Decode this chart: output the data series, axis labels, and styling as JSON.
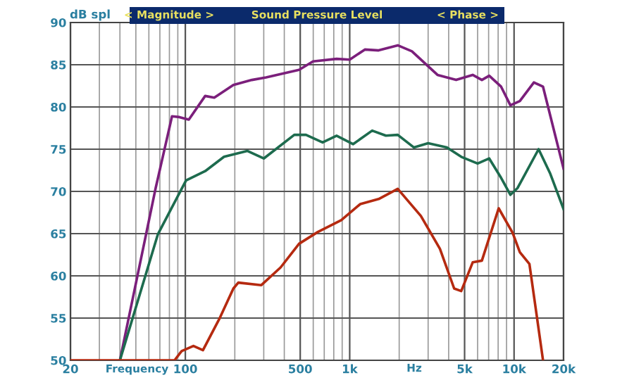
{
  "chart_data": {
    "type": "line",
    "title": "Sound Pressure Level",
    "ylabel": "dB spl",
    "xlabel": "Frequency",
    "annotations": [
      "< Magnitude >",
      "< Phase >",
      "Hz"
    ],
    "log": "x",
    "xlim": [
      20,
      20000
    ],
    "xticks": [
      20,
      100,
      500,
      {
        "value": 1000,
        "label": "1k"
      },
      {
        "value": 5000,
        "label": "5k"
      },
      {
        "value": 10000,
        "label": "10k"
      },
      {
        "value": 20000,
        "label": "20k"
      }
    ],
    "ylim": [
      50,
      90
    ],
    "yticks": [
      50,
      55,
      60,
      65,
      70,
      75,
      80,
      85,
      90
    ],
    "grid": true,
    "line_style": "solid",
    "series": [
      {
        "color": "#7b1f7b",
        "x": [
          40,
          66,
          83,
          92,
          105,
          132,
          150,
          196,
          254,
          310,
          492,
          598,
          832,
          1000,
          1236,
          1500,
          1960,
          2390,
          3420,
          4440,
          5600,
          6370,
          7060,
          8340,
          9500,
          10840,
          13200,
          15000,
          20000
        ],
        "values": [
          50,
          70.4,
          78.9,
          78.8,
          78.5,
          81.3,
          81.1,
          82.6,
          83.2,
          83.5,
          84.4,
          85.4,
          85.7,
          85.6,
          86.8,
          86.7,
          87.3,
          86.6,
          83.8,
          83.2,
          83.8,
          83.2,
          83.7,
          82.4,
          80.2,
          80.7,
          82.9,
          82.4,
          72.7
        ]
      },
      {
        "color": "#1d6b4e",
        "x": [
          40,
          68,
          101,
          132,
          172,
          238,
          300,
          460,
          542,
          684,
          832,
          1050,
          1370,
          1660,
          1960,
          2460,
          3000,
          3900,
          4770,
          6000,
          7060,
          8340,
          9500,
          10500,
          14100,
          16600,
          20000
        ],
        "values": [
          50,
          64.9,
          71.3,
          72.4,
          74.1,
          74.8,
          73.9,
          76.7,
          76.7,
          75.8,
          76.6,
          75.6,
          77.2,
          76.6,
          76.7,
          75.2,
          75.7,
          75.2,
          74.1,
          73.3,
          73.9,
          71.6,
          69.6,
          70.4,
          75.0,
          72.1,
          67.9
        ]
      },
      {
        "color": "#b52a10",
        "x": [
          20,
          86,
          95,
          112,
          128,
          161,
          196,
          210,
          290,
          380,
          492,
          640,
          888,
          1160,
          1500,
          1960,
          2710,
          3540,
          4320,
          4770,
          5600,
          6370,
          8060,
          9800,
          10840,
          12400,
          15000
        ],
        "values": [
          50,
          50,
          51.1,
          51.7,
          51.2,
          54.9,
          58.5,
          59.2,
          58.9,
          61.0,
          63.8,
          65.2,
          66.6,
          68.5,
          69.1,
          70.3,
          67.1,
          63.2,
          58.5,
          58.2,
          61.6,
          61.8,
          68.0,
          65.1,
          62.8,
          61.4,
          50
        ]
      }
    ]
  }
}
